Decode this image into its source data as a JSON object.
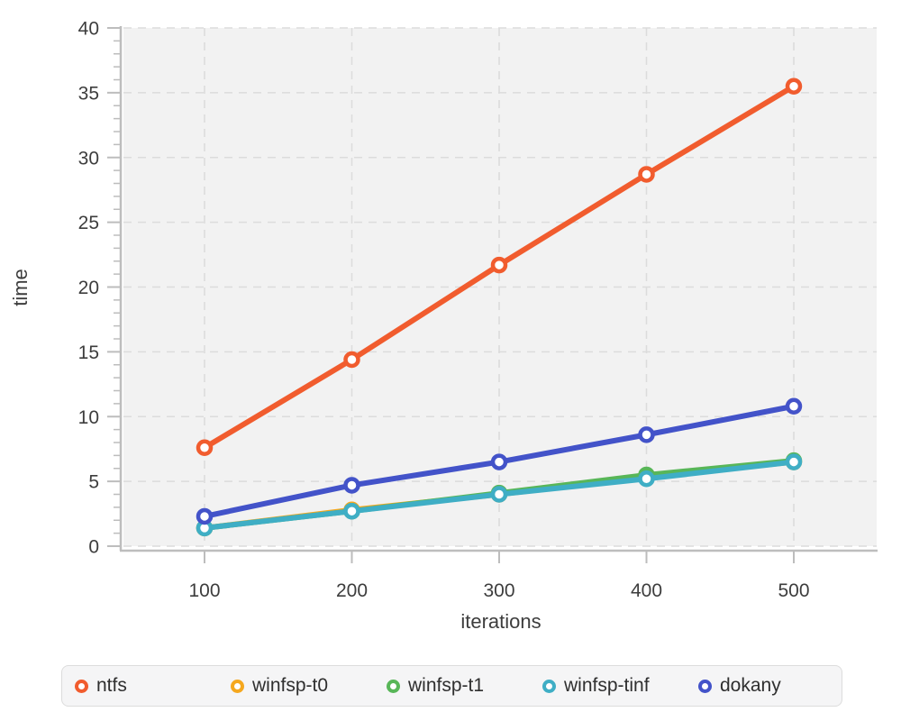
{
  "colors": {
    "plot_background": "#f2f2f2",
    "gridline": "#dcdcdc",
    "axis_line": "#bdbdbd",
    "tick_text": "#3d3d3d",
    "legend_background": "#f5f5f6",
    "legend_border": "#dcdcdc",
    "marker_fill": "#ffffff"
  },
  "chart_data": {
    "type": "line",
    "title": "",
    "xlabel": "iterations",
    "ylabel": "time",
    "x": [
      100,
      200,
      300,
      400,
      500
    ],
    "x_ticks": [
      100,
      200,
      300,
      400,
      500
    ],
    "y_ticks": [
      0,
      5,
      10,
      15,
      20,
      25,
      30,
      35,
      40
    ],
    "y_minor_tick_step": 1,
    "ylim": [
      0,
      40
    ],
    "grid": true,
    "grid_style": "dashed",
    "marker": "open-circle",
    "legend_position": "bottom",
    "series": [
      {
        "name": "ntfs",
        "color": "#F15C2E",
        "values": [
          7.6,
          14.4,
          21.7,
          28.7,
          35.5
        ]
      },
      {
        "name": "winfsp-t0",
        "color": "#F5A81F",
        "values": [
          1.4,
          2.8,
          4.0,
          5.3,
          6.5
        ]
      },
      {
        "name": "winfsp-t1",
        "color": "#58B658",
        "values": [
          1.4,
          2.7,
          4.1,
          5.5,
          6.6
        ]
      },
      {
        "name": "winfsp-tinf",
        "color": "#3FAEC5",
        "values": [
          1.4,
          2.7,
          4.0,
          5.2,
          6.5
        ]
      },
      {
        "name": "dokany",
        "color": "#4353C9",
        "values": [
          2.3,
          4.7,
          6.5,
          8.6,
          10.8
        ]
      }
    ]
  }
}
